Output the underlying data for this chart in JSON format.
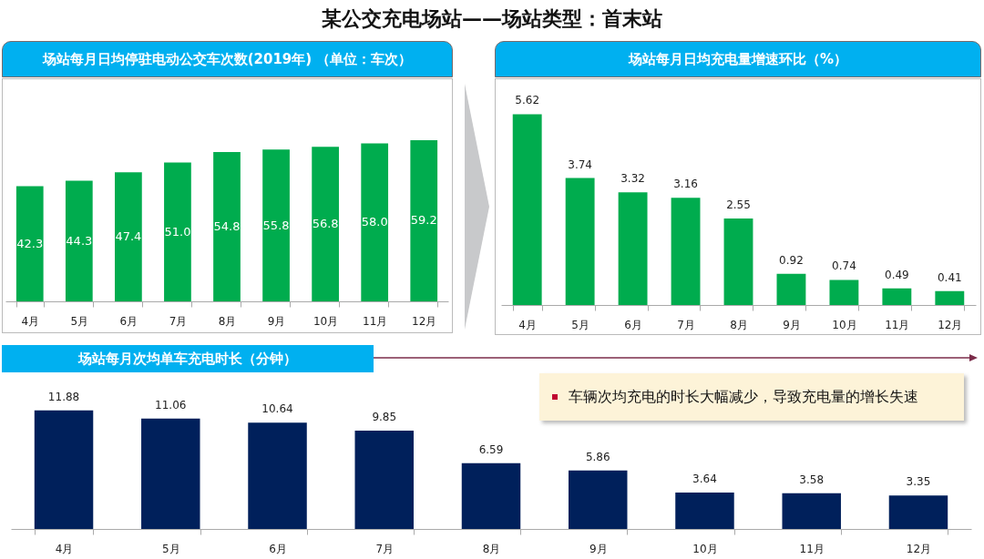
{
  "chart_data": [
    {
      "type": "bar",
      "title": "某公交充电场站——场站类型：首末站",
      "subtitle": "场站每月日均停驻电动公交车次数(2019年) （单位：车次）",
      "categories": [
        "4月",
        "5月",
        "6月",
        "7月",
        "8月",
        "9月",
        "10月",
        "11月",
        "12月"
      ],
      "values": [
        42.3,
        44.3,
        47.4,
        51.0,
        54.8,
        55.8,
        56.8,
        58.0,
        59.2
      ],
      "value_labels": [
        "42.3",
        "44.3",
        "47.4",
        "51.0",
        "54.8",
        "55.8",
        "56.8",
        "58.0",
        "59.2"
      ],
      "color": "#00ac4e"
    },
    {
      "type": "bar",
      "title": "场站每月日均充电量增速环比（%）",
      "categories": [
        "4月",
        "5月",
        "6月",
        "7月",
        "8月",
        "9月",
        "10月",
        "11月",
        "12月"
      ],
      "values": [
        5.62,
        3.74,
        3.32,
        3.16,
        2.55,
        0.92,
        0.74,
        0.49,
        0.41
      ],
      "data_labels": true,
      "color": "#00ac4e"
    },
    {
      "type": "bar",
      "title": "场站每月次均单车充电时长（分钟）",
      "categories": [
        "4月",
        "5月",
        "6月",
        "7月",
        "8月",
        "9月",
        "10月",
        "11月",
        "12月"
      ],
      "values": [
        11.88,
        11.06,
        10.64,
        9.85,
        6.59,
        5.86,
        3.64,
        3.58,
        3.35
      ],
      "data_labels": true,
      "color": "#00205b",
      "annotations": [
        "车辆次均充电的时长大幅减少，导致充电量的增长失速"
      ]
    }
  ]
}
